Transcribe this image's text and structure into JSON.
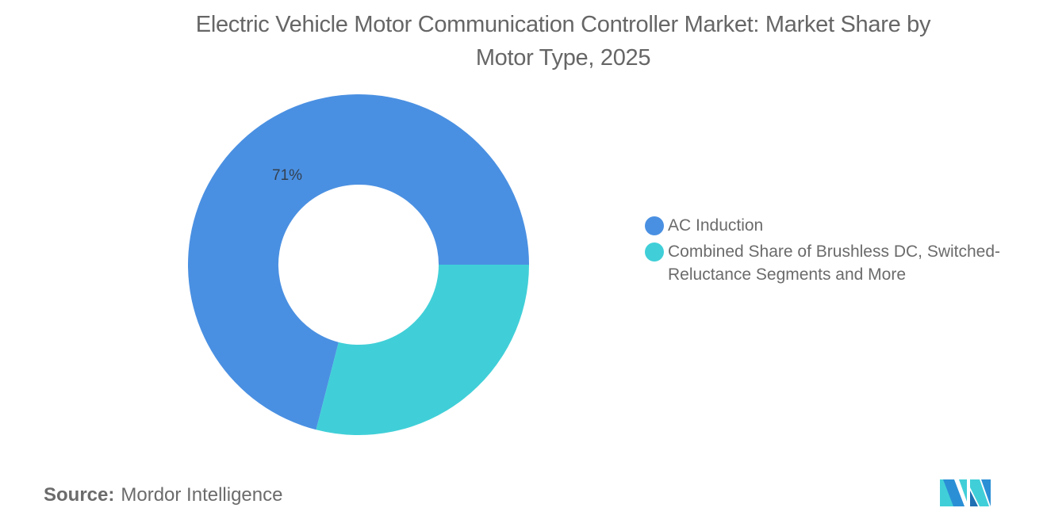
{
  "header": {
    "title_line1": "Electric Vehicle Motor Communication Controller Market: Market Share by",
    "title_line2": "Motor Type, 2025"
  },
  "chart_data": {
    "type": "pie",
    "subtype": "donut",
    "title": "Electric Vehicle Motor Communication Controller Market: Market Share by Motor Type, 2025",
    "categories": [
      "AC Induction",
      "Combined Share of Brushless DC, Switched-Reluctance Segments and More"
    ],
    "values": [
      71,
      29
    ],
    "unit": "%",
    "colors": [
      "#4a90e2",
      "#40cfd8"
    ],
    "data_labels": [
      "71%",
      ""
    ],
    "legend_position": "right",
    "inner_radius_ratio": 0.47
  },
  "legend": {
    "items": [
      {
        "label": "AC Induction",
        "color": "#4a90e2"
      },
      {
        "label": "Combined Share of Brushless DC, Switched-Reluctance Segments and More",
        "color": "#40cfd8"
      }
    ]
  },
  "labels": {
    "slice_0": "71%"
  },
  "footer": {
    "source_key": "Source:",
    "source_value": "Mordor Intelligence"
  },
  "logo": {
    "icon": "mordor-intelligence-logo-icon",
    "colors": [
      "#2b8fd6",
      "#40cfd8",
      "#1f6fb3"
    ]
  }
}
